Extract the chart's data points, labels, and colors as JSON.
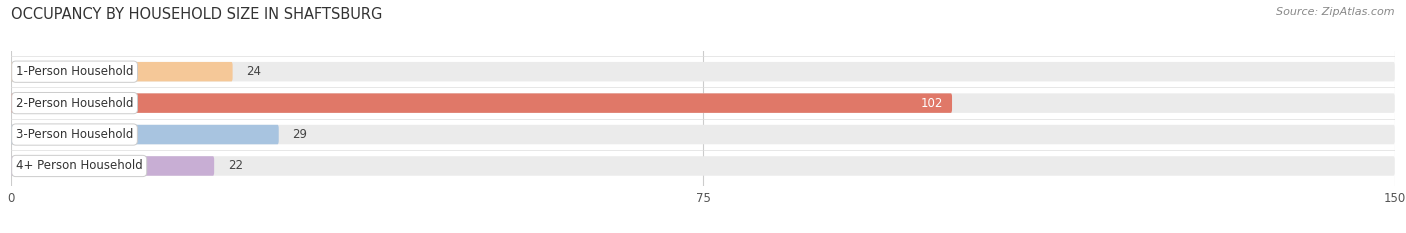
{
  "title": "OCCUPANCY BY HOUSEHOLD SIZE IN SHAFTSBURG",
  "source": "Source: ZipAtlas.com",
  "categories": [
    "1-Person Household",
    "2-Person Household",
    "3-Person Household",
    "4+ Person Household"
  ],
  "values": [
    24,
    102,
    29,
    22
  ],
  "bar_colors": [
    "#f5c898",
    "#e07868",
    "#a8c4e0",
    "#c8aed4"
  ],
  "bar_bg_color": "#ebebeb",
  "xlim": [
    0,
    150
  ],
  "xticks": [
    0,
    75,
    150
  ],
  "background_color": "#ffffff",
  "title_fontsize": 10.5,
  "label_fontsize": 8.5,
  "value_fontsize": 8.5,
  "source_fontsize": 8.0,
  "bar_height": 0.62,
  "bar_gap": 1.4
}
